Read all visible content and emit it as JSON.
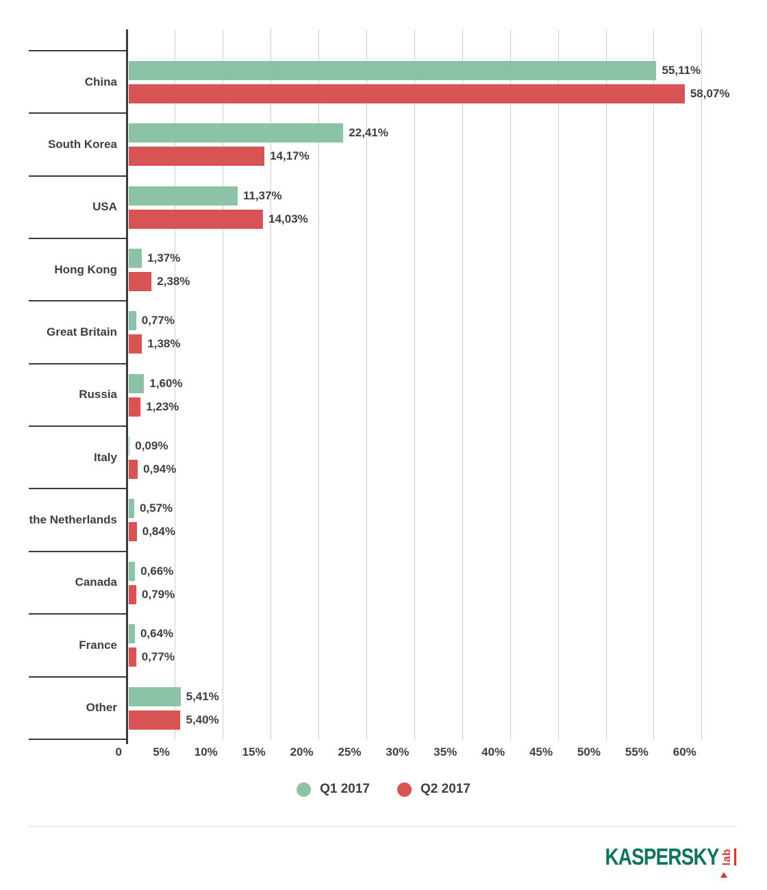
{
  "chart_data": {
    "type": "bar",
    "orientation": "horizontal",
    "title": "",
    "categories": [
      "China",
      "South Korea",
      "USA",
      "Hong Kong",
      "Great Britain",
      "Russia",
      "Italy",
      "the Netherlands",
      "Canada",
      "France",
      "Other"
    ],
    "series": [
      {
        "name": "Q1 2017",
        "color": "#8cc3a6",
        "values": [
          55.11,
          22.41,
          11.37,
          1.37,
          0.77,
          1.6,
          0.09,
          0.57,
          0.66,
          0.64,
          5.41
        ],
        "labels": [
          "55,11%",
          "22,41%",
          "11,37%",
          "1,37%",
          "0,77%",
          "1,60%",
          "0,09%",
          "0,57%",
          "0,66%",
          "0,64%",
          "5,41%"
        ]
      },
      {
        "name": "Q2 2017",
        "color": "#d85353",
        "values": [
          58.07,
          14.17,
          14.03,
          2.38,
          1.38,
          1.23,
          0.94,
          0.84,
          0.79,
          0.77,
          5.4
        ],
        "labels": [
          "58,07%",
          "14,17%",
          "14,03%",
          "2,38%",
          "1,38%",
          "1,23%",
          "0,94%",
          "0,84%",
          "0,79%",
          "0,77%",
          "5,40%"
        ]
      }
    ],
    "x_axis": {
      "ticks": [
        "0",
        "5%",
        "10%",
        "15%",
        "20%",
        "25%",
        "30%",
        "35%",
        "40%",
        "45%",
        "50%",
        "55%",
        "60%"
      ],
      "min": 0,
      "max": 60,
      "grid": "vertical"
    },
    "legend_position": "bottom-center"
  },
  "colors": {
    "q1_green": "#8cc3a6",
    "q2_red": "#d85353",
    "axis": "#3a3a3a",
    "grid": "#cccccc",
    "text": "#3e3e3e",
    "divider": "#dcdcdc"
  },
  "branding": {
    "logo_main": "KASPERSKY",
    "logo_sub": "lab",
    "logo_green": "#0e7460",
    "logo_red": "#d9352e"
  }
}
